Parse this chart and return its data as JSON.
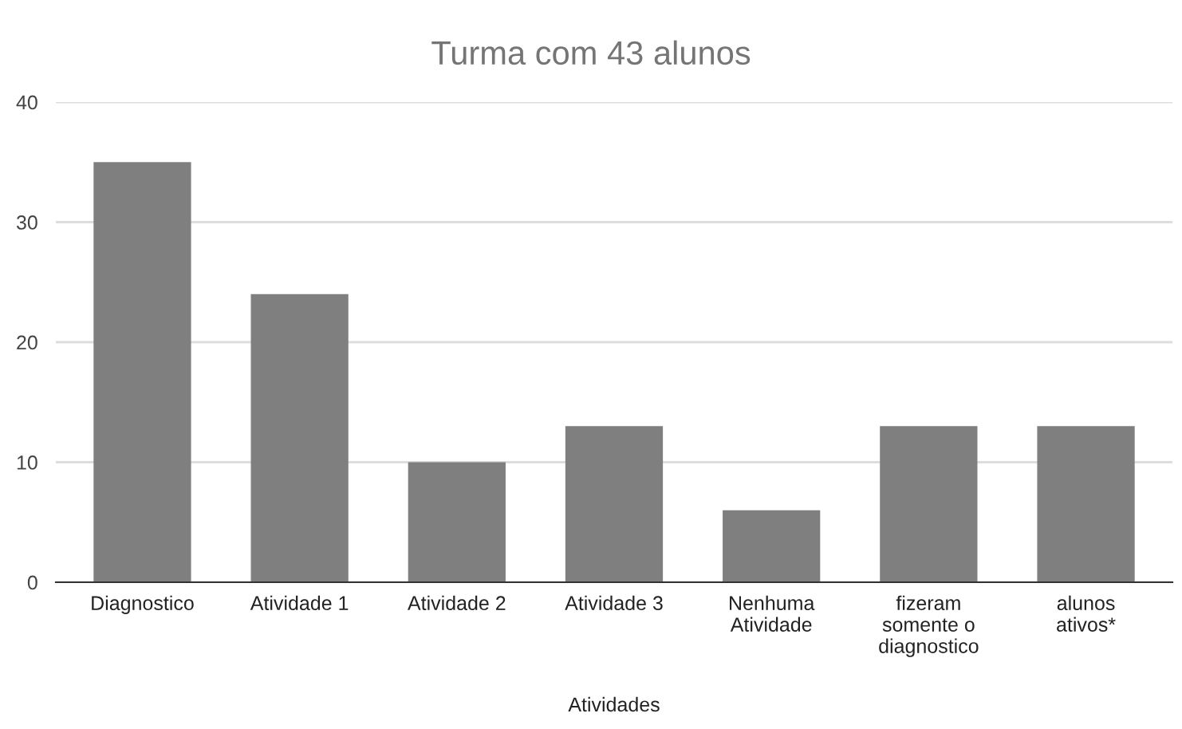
{
  "chart_data": {
    "type": "bar",
    "title": "Turma com 43 alunos",
    "xlabel": "Atividades",
    "categories": [
      "Diagnostico",
      "Atividade 1",
      "Atividade 2",
      "Atividade 3",
      "Nenhuma\nAtividade",
      "fizeram\nsomente o\ndiagnostico",
      "alunos\nativos*"
    ],
    "values": [
      35,
      24,
      10,
      13,
      6,
      13,
      13
    ],
    "color": "#7f7f7f",
    "ylim": [
      0,
      40
    ],
    "yticks": [
      0,
      10,
      20,
      30,
      40
    ],
    "grid": "y",
    "legend": false
  }
}
